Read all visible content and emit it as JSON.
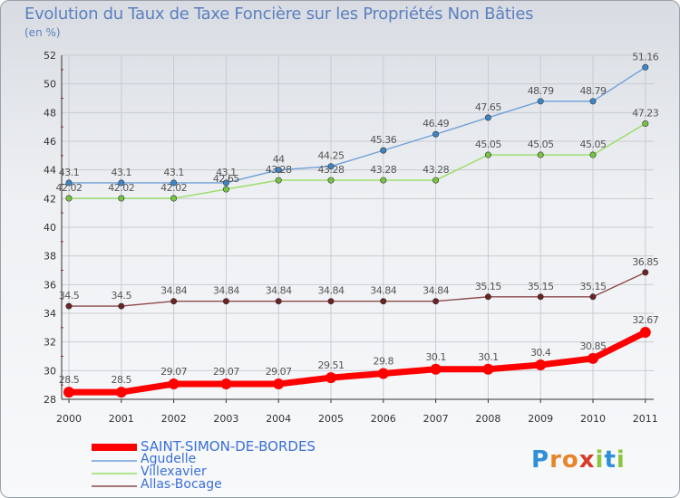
{
  "header": {
    "title": "Evolution du Taux de Taxe Foncière sur les Propriétés Non Bâties",
    "unit": "(en %)"
  },
  "colors": {
    "title": "#5b7fbf",
    "grid": "#c8ccd2",
    "axis": "#333333",
    "tick_marks": "#b03030",
    "legend_text": "#3b6fd8"
  },
  "logo": {
    "text": "Proxiti",
    "letter_colors": [
      "#2f8fd8",
      "#e8842a",
      "#e8842a",
      "#d83a2a",
      "#8cc63f",
      "#2f8fd8",
      "#8cc63f"
    ]
  },
  "chart_data": {
    "type": "line",
    "title": "Evolution du Taux de Taxe Foncière sur les Propriétés Non Bâties",
    "ylabel": "(en %)",
    "xlabel": "",
    "x": [
      "2000",
      "2001",
      "2002",
      "2003",
      "2004",
      "2005",
      "2006",
      "2007",
      "2008",
      "2009",
      "2010",
      "2011"
    ],
    "ylim": [
      28,
      52
    ],
    "yticks": [
      28,
      30,
      32,
      34,
      36,
      38,
      40,
      42,
      44,
      46,
      48,
      50,
      52
    ],
    "grid": true,
    "legend_position": "bottom-left",
    "series": [
      {
        "name": "SAINT-SIMON-DE-BORDES",
        "color": "#ff0000",
        "marker_color": "#ff0000",
        "values": [
          28.5,
          28.5,
          29.07,
          29.07,
          29.07,
          29.51,
          29.8,
          30.1,
          30.1,
          30.4,
          30.85,
          32.67
        ],
        "labels": [
          "28.5",
          "28.5",
          "29.07",
          "29.07",
          "29.07",
          "29.51",
          "29.8",
          "30.1",
          "30.1",
          "30.4",
          "30.85",
          "32.67"
        ],
        "emphasis": true
      },
      {
        "name": "Agudelle",
        "color": "#6fa0d8",
        "marker_color": "#3d86c6",
        "values": [
          43.1,
          43.1,
          43.1,
          43.1,
          44,
          44.25,
          45.36,
          46.49,
          47.65,
          48.79,
          48.79,
          51.16
        ],
        "labels": [
          "43.1",
          "43.1",
          "43.1",
          "43.1",
          "44",
          "44.25",
          "45.36",
          "46.49",
          "47.65",
          "48.79",
          "48.79",
          "51.16"
        ]
      },
      {
        "name": "Villexavier",
        "color": "#99dd66",
        "marker_color": "#77c444",
        "values": [
          42.02,
          42.02,
          42.02,
          42.65,
          43.28,
          43.28,
          43.28,
          43.28,
          45.05,
          45.05,
          45.05,
          47.23
        ],
        "labels": [
          "42.02",
          "42.02",
          "42.02",
          "42.65",
          "43.28",
          "43.28",
          "43.28",
          "43.28",
          "45.05",
          "45.05",
          "45.05",
          "47.23"
        ]
      },
      {
        "name": "Allas-Bocage",
        "color": "#8b4a4a",
        "marker_color": "#6b2222",
        "values": [
          34.5,
          34.5,
          34.84,
          34.84,
          34.84,
          34.84,
          34.84,
          34.84,
          35.15,
          35.15,
          35.15,
          36.85
        ],
        "labels": [
          "34.5",
          "34.5",
          "34.84",
          "34.84",
          "34.84",
          "34.84",
          "34.84",
          "34.84",
          "35.15",
          "35.15",
          "35.15",
          "36.85"
        ]
      }
    ]
  }
}
